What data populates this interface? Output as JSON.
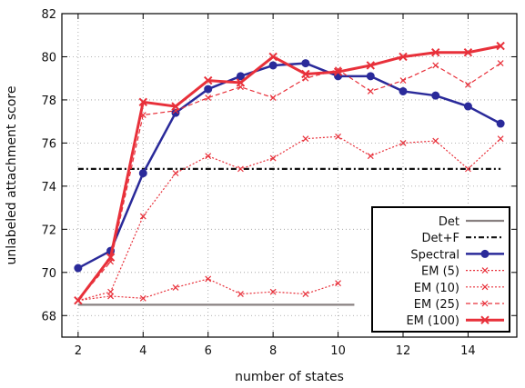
{
  "chart_data": {
    "type": "line",
    "title": "",
    "xlabel": "number of states",
    "ylabel": "unlabeled attachment score",
    "xlim": [
      1.5,
      15.5
    ],
    "ylim": [
      67,
      82
    ],
    "xticks": [
      2,
      4,
      6,
      8,
      10,
      12,
      14
    ],
    "yticks": [
      68,
      70,
      72,
      74,
      76,
      78,
      80,
      82
    ],
    "grid": true,
    "legend_position": "bottom-right",
    "series": [
      {
        "name": "Det",
        "color": "#888080",
        "style": "solid",
        "marker": "none",
        "x": [
          2,
          10.5
        ],
        "y": [
          68.5,
          68.5
        ]
      },
      {
        "name": "Det+F",
        "color": "#111111",
        "style": "dashdot",
        "marker": "none",
        "x": [
          2,
          15
        ],
        "y": [
          74.8,
          74.8
        ]
      },
      {
        "name": "Spectral",
        "color": "#2a2a9a",
        "style": "solid",
        "marker": "circle",
        "x": [
          2,
          3,
          4,
          5,
          6,
          7,
          8,
          9,
          10,
          11,
          12,
          13,
          14,
          15
        ],
        "y": [
          70.2,
          71.0,
          74.6,
          77.4,
          78.5,
          79.1,
          79.6,
          79.7,
          79.1,
          79.1,
          78.4,
          78.2,
          77.7,
          76.9
        ]
      },
      {
        "name": "EM (5)",
        "color": "#e8303a",
        "style": "dotted",
        "marker": "x",
        "x": [
          2,
          3,
          4,
          5,
          6,
          7,
          8,
          9,
          10
        ],
        "y": [
          68.7,
          68.9,
          68.8,
          69.3,
          69.7,
          69.0,
          69.1,
          69.0,
          69.5
        ]
      },
      {
        "name": "EM (10)",
        "color": "#e8303a",
        "style": "dotted",
        "marker": "x",
        "x": [
          2,
          3,
          4,
          5,
          6,
          7,
          8,
          9,
          10,
          11,
          12,
          13,
          14,
          15
        ],
        "y": [
          68.7,
          69.1,
          72.6,
          74.6,
          75.4,
          74.8,
          75.3,
          76.2,
          76.3,
          75.4,
          76.0,
          76.1,
          74.8,
          76.2
        ]
      },
      {
        "name": "EM (25)",
        "color": "#e8303a",
        "style": "dashed",
        "marker": "x",
        "x": [
          2,
          3,
          4,
          5,
          6,
          7,
          8,
          9,
          10,
          11,
          12,
          13,
          14,
          15
        ],
        "y": [
          68.7,
          70.5,
          77.3,
          77.5,
          78.1,
          78.6,
          78.1,
          79.0,
          79.4,
          78.4,
          78.9,
          79.6,
          78.7,
          79.7
        ]
      },
      {
        "name": "EM (100)",
        "color": "#e8303a",
        "style": "solid-thick",
        "marker": "x",
        "x": [
          2,
          3,
          4,
          5,
          6,
          7,
          8,
          9,
          10,
          11,
          12,
          13,
          14,
          15
        ],
        "y": [
          68.7,
          70.7,
          77.9,
          77.7,
          78.9,
          78.8,
          80.0,
          79.2,
          79.3,
          79.6,
          80.0,
          80.2,
          80.2,
          80.5
        ]
      }
    ]
  }
}
